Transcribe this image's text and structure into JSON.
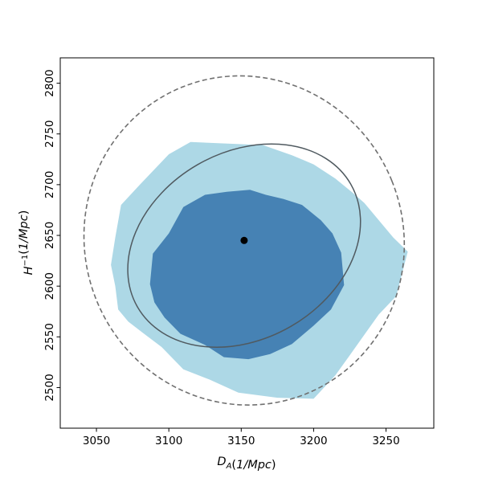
{
  "chart_data": {
    "type": "contour",
    "xlabel": "D_A(1/Mpc)",
    "ylabel": "H^{-1}(1/Mpc)",
    "xlim": [
      3025,
      3283
    ],
    "ylim": [
      2460,
      2825
    ],
    "xticks": [
      3050,
      3100,
      3150,
      3200,
      3250
    ],
    "yticks": [
      2500,
      2550,
      2600,
      2650,
      2700,
      2750,
      2800
    ],
    "grid": false,
    "colors": {
      "outer_fill": "#add8e6",
      "inner_fill": "#4682b4",
      "solid_ellipse": "#505a60",
      "dashed_ellipse": "#707070",
      "marker": "#000000"
    },
    "regions": [
      {
        "level": "outer",
        "points": [
          [
            3067,
            2680
          ],
          [
            3080,
            2700
          ],
          [
            3100,
            2730
          ],
          [
            3115,
            2742
          ],
          [
            3165,
            2739
          ],
          [
            3185,
            2729
          ],
          [
            3200,
            2720
          ],
          [
            3215,
            2706
          ],
          [
            3227,
            2692
          ],
          [
            3235,
            2682
          ],
          [
            3245,
            2665
          ],
          [
            3255,
            2648
          ],
          [
            3265,
            2634
          ],
          [
            3257,
            2590
          ],
          [
            3245,
            2572
          ],
          [
            3235,
            2552
          ],
          [
            3225,
            2532
          ],
          [
            3215,
            2512
          ],
          [
            3200,
            2489
          ],
          [
            3175,
            2490
          ],
          [
            3148,
            2495
          ],
          [
            3128,
            2508
          ],
          [
            3110,
            2518
          ],
          [
            3095,
            2540
          ],
          [
            3082,
            2554
          ],
          [
            3072,
            2565
          ],
          [
            3065,
            2577
          ],
          [
            3063,
            2600
          ],
          [
            3060,
            2621
          ],
          [
            3063,
            2648
          ]
        ]
      },
      {
        "level": "inner",
        "points": [
          [
            3100,
            2652
          ],
          [
            3110,
            2678
          ],
          [
            3125,
            2690
          ],
          [
            3140,
            2693
          ],
          [
            3156,
            2695
          ],
          [
            3167,
            2690
          ],
          [
            3179,
            2686
          ],
          [
            3192,
            2680
          ],
          [
            3205,
            2665
          ],
          [
            3213,
            2652
          ],
          [
            3219,
            2633
          ],
          [
            3221,
            2601
          ],
          [
            3212,
            2577
          ],
          [
            3200,
            2561
          ],
          [
            3185,
            2543
          ],
          [
            3170,
            2533
          ],
          [
            3155,
            2528
          ],
          [
            3138,
            2530
          ],
          [
            3125,
            2542
          ],
          [
            3108,
            2553
          ],
          [
            3097,
            2569
          ],
          [
            3090,
            2584
          ],
          [
            3087,
            2602
          ],
          [
            3089,
            2632
          ]
        ]
      }
    ],
    "ellipses": [
      {
        "style": "solid",
        "center": [
          3152,
          2640
        ],
        "semi_axes": [
          85,
          92
        ],
        "tilt_deg": -30
      },
      {
        "style": "dashed",
        "center": [
          3152,
          2645
        ],
        "semi_axes": [
          110,
          163
        ],
        "tilt_deg": -22
      }
    ],
    "point": {
      "x": 3152,
      "y": 2645
    }
  }
}
